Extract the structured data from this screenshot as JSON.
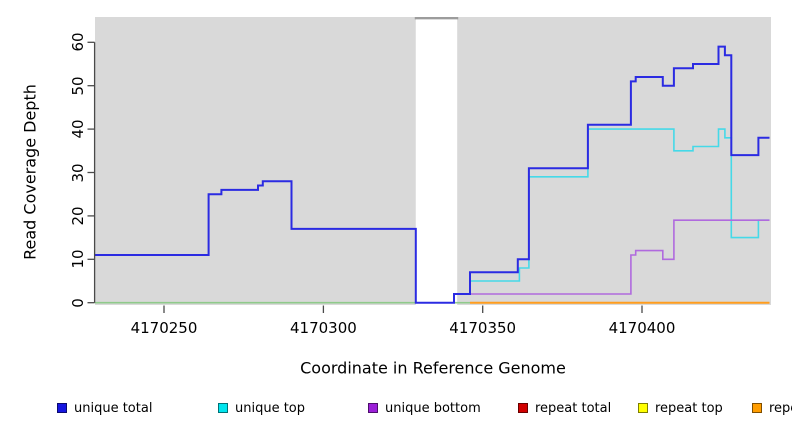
{
  "chart_data": {
    "type": "line",
    "subtype": "step",
    "title": "",
    "xlabel": "Coordinate in Reference Genome",
    "ylabel": "Read Coverage Depth",
    "x_ticks": [
      "4170250",
      "4170300",
      "4170350",
      "4170400"
    ],
    "x_tick_values": [
      4170250,
      4170300,
      4170350,
      4170400
    ],
    "y_ticks": [
      "0",
      "10",
      "20",
      "30",
      "40",
      "50",
      "60"
    ],
    "y_tick_values": [
      0,
      10,
      20,
      30,
      40,
      50,
      60
    ],
    "xlim": [
      4170228,
      4170440
    ],
    "ylim": [
      0,
      66
    ],
    "grid": false,
    "legend_position": "bottom",
    "panel_background": "#d9d9d9",
    "masked_region": {
      "x_start": 4170329,
      "x_end": 4170342,
      "fill": "#ffffff",
      "top_strip_color": "#9c9c9c"
    },
    "series": [
      {
        "name": "zero-coverage-overlap-line",
        "color": "#8fca8b",
        "width": 1.6,
        "segments": [
          {
            "steps": [
              [
                4170228,
                0
              ]
            ],
            "xend": 4170329
          },
          {
            "steps": [
              [
                4170341,
                0
              ]
            ],
            "xend": 4170346
          }
        ]
      },
      {
        "name": "repeat bottom",
        "color": "#ff9d1e",
        "width": 2,
        "segments": [
          {
            "steps": [
              [
                4170346,
                0
              ]
            ],
            "xend": 4170440
          }
        ]
      },
      {
        "name": "unique top",
        "color": "#45d9e8",
        "width": 1.6,
        "segments": [
          {
            "steps": [
              [
                4170346,
                5
              ],
              [
                4170361.5,
                8
              ],
              [
                4170364.5,
                29
              ],
              [
                4170383,
                40
              ],
              [
                4170410,
                35
              ],
              [
                4170416,
                36
              ],
              [
                4170424,
                40
              ],
              [
                4170426,
                38
              ],
              [
                4170428,
                15
              ],
              [
                4170436.5,
                19
              ]
            ],
            "xend": 4170440
          }
        ]
      },
      {
        "name": "unique bottom",
        "color": "#b06ade",
        "width": 1.6,
        "segments": [
          {
            "steps": [
              [
                4170341,
                2
              ],
              [
                4170396.5,
                11
              ],
              [
                4170398,
                12
              ],
              [
                4170406.5,
                10
              ],
              [
                4170410,
                19
              ]
            ],
            "xend": 4170440
          }
        ]
      },
      {
        "name": "unique total",
        "color": "#2b2be2",
        "width": 2,
        "segments": [
          {
            "steps": [
              [
                4170228,
                11
              ],
              [
                4170264,
                25
              ],
              [
                4170268,
                26
              ],
              [
                4170279.5,
                27
              ],
              [
                4170281,
                28
              ],
              [
                4170290,
                17
              ],
              [
                4170329,
                0
              ],
              [
                4170341,
                2
              ],
              [
                4170346,
                7
              ],
              [
                4170361,
                10
              ],
              [
                4170364.5,
                31
              ],
              [
                4170383,
                41
              ],
              [
                4170396.5,
                51
              ],
              [
                4170398,
                52
              ],
              [
                4170406.5,
                50
              ],
              [
                4170410,
                54
              ],
              [
                4170416,
                55
              ],
              [
                4170424,
                59
              ],
              [
                4170426,
                57
              ],
              [
                4170428,
                34
              ],
              [
                4170436.5,
                38
              ]
            ],
            "xend": 4170440
          }
        ]
      }
    ]
  },
  "legend": {
    "items": [
      {
        "label": "unique total",
        "swatch_color": "#1616e0"
      },
      {
        "label": "unique top",
        "swatch_color": "#00e5ee"
      },
      {
        "label": "unique bottom",
        "swatch_color": "#9b1fd8"
      },
      {
        "label": "repeat total",
        "swatch_color": "#d10000"
      },
      {
        "label": "repeat top",
        "swatch_color": "#ffff00"
      },
      {
        "label": "repeat bottom",
        "swatch_color": "#ff9d00"
      }
    ]
  }
}
